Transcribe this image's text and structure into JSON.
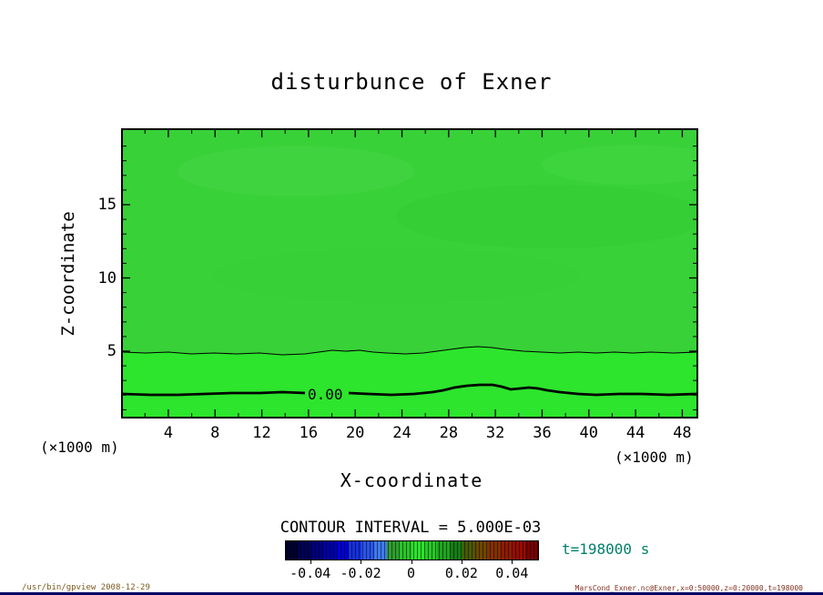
{
  "title": "disturbunce of Exner",
  "plot": {
    "contour_label": "0.00",
    "field_color": "#38d138",
    "band_color": "#2ce52c"
  },
  "axes": {
    "x_label": "X-coordinate",
    "y_label": "Z-coordinate",
    "x_unit": "(×1000 m)"
  },
  "legend": {
    "contour_interval_text": "CONTOUR INTERVAL = 5.000E-03",
    "time_label": "t=198000 s",
    "time_color": "#00806a",
    "colorbar_tick_labels": [
      "-0.04",
      "-0.02",
      "0",
      "0.02",
      "0.04"
    ],
    "colorbar_colors": [
      "#000030",
      "#000058",
      "#000080",
      "#0000aa",
      "#0000d4",
      "#1530e0",
      "#2a55ea",
      "#3f7af0",
      "#2f9f2f",
      "#2bc42b",
      "#2ee32e",
      "#28c828",
      "#1fa51f",
      "#167d16",
      "#4a5a00",
      "#6e4600",
      "#833000",
      "#8e1c00",
      "#960c00",
      "#7a0000"
    ]
  },
  "footer": {
    "left": "/usr/bin/gpview  2008-12-29",
    "right": "MarsCond_Exner.nc@Exner,x=0:50000,z=0:20000,t=198000"
  },
  "chart_data": {
    "type": "contour",
    "title": "disturbunce of Exner",
    "xlabel": "X-coordinate (×1000 m)",
    "ylabel": "Z-coordinate (×1000 m)",
    "xlim": [
      0,
      50
    ],
    "ylim": [
      0,
      20
    ],
    "x_tick_values": [
      4,
      8,
      12,
      16,
      20,
      24,
      28,
      32,
      36,
      40,
      44,
      48
    ],
    "y_tick_values": [
      5,
      10,
      15
    ],
    "contour_interval": 0.005,
    "time_s": 198000,
    "colorbar": {
      "min": -0.05,
      "max": 0.05,
      "tick_values": [
        -0.04,
        -0.02,
        0,
        0.02,
        0.04
      ]
    },
    "contours": [
      {
        "level": 0.005,
        "style": "thin",
        "approx_height_km": 4.5,
        "shape": "nearly horizontal, small undulations, slight rise near x=30-34"
      },
      {
        "level": 0.0,
        "style": "thick",
        "label": "0.00",
        "approx_height_km": 2.2,
        "shape": "nearly horizontal, bump upward near x=28-34"
      }
    ],
    "field_description": "Exner function disturbance; field is near zero (green fill) over the whole domain, slightly positive band below ~4.5 km, zero contour near 2.2 km"
  }
}
